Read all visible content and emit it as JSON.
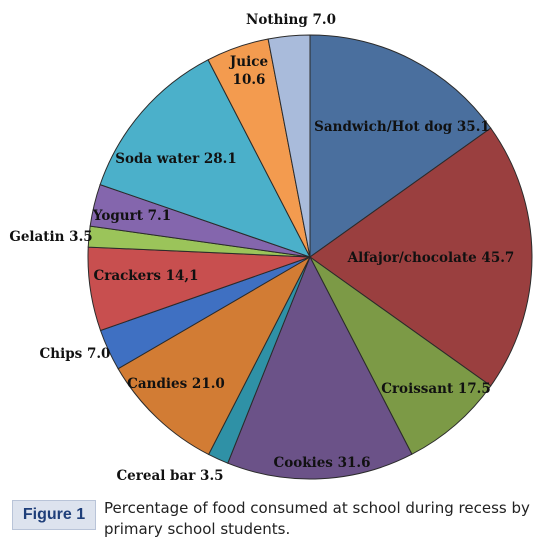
{
  "figure": {
    "badge": "Figure 1",
    "caption": "Percentage of food consumed at school during recess by primary school students."
  },
  "chart_data": {
    "type": "pie",
    "slices": [
      {
        "label": "Sandwich/Hot dog 35.1",
        "name": "Sandwich/Hot dog",
        "value": 35.1,
        "color": "#4a6f9e"
      },
      {
        "label": "Alfajor/chocolate 45.7",
        "name": "Alfajor/chocolate",
        "value": 45.7,
        "color": "#9a3f3f"
      },
      {
        "label": "Croissant 17.5",
        "name": "Croissant",
        "value": 17.5,
        "color": "#7c9a46"
      },
      {
        "label": "Cookies 31.6",
        "name": "Cookies",
        "value": 31.6,
        "color": "#6b5288"
      },
      {
        "label": "Cereal bar 3.5",
        "name": "Cereal bar",
        "value": 3.5,
        "color": "#2f91a6"
      },
      {
        "label": "Candies 21.0",
        "name": "Candies",
        "value": 21.0,
        "color": "#d27c34"
      },
      {
        "label": "Chips 7.0",
        "name": "Chips",
        "value": 7.0,
        "color": "#3f70c2"
      },
      {
        "label": "Crackers 14,1",
        "name": "Crackers",
        "value": 14.1,
        "color": "#c84f4f"
      },
      {
        "label": "Gelatin 3.5",
        "name": "Gelatin",
        "value": 3.5,
        "color": "#9bc45a"
      },
      {
        "label": "Yogurt 7.1",
        "name": "Yogurt",
        "value": 7.1,
        "color": "#8466ad"
      },
      {
        "label": "Soda water 28.1",
        "name": "Soda water",
        "value": 28.1,
        "color": "#4bb0ca"
      },
      {
        "label": "Juice 10.6",
        "name": "Juice",
        "value": 10.6,
        "color": "#f39b4f"
      },
      {
        "label": "Nothing 7.0",
        "name": "Nothing",
        "value": 7.0,
        "color": "#a9bbdb"
      }
    ]
  }
}
